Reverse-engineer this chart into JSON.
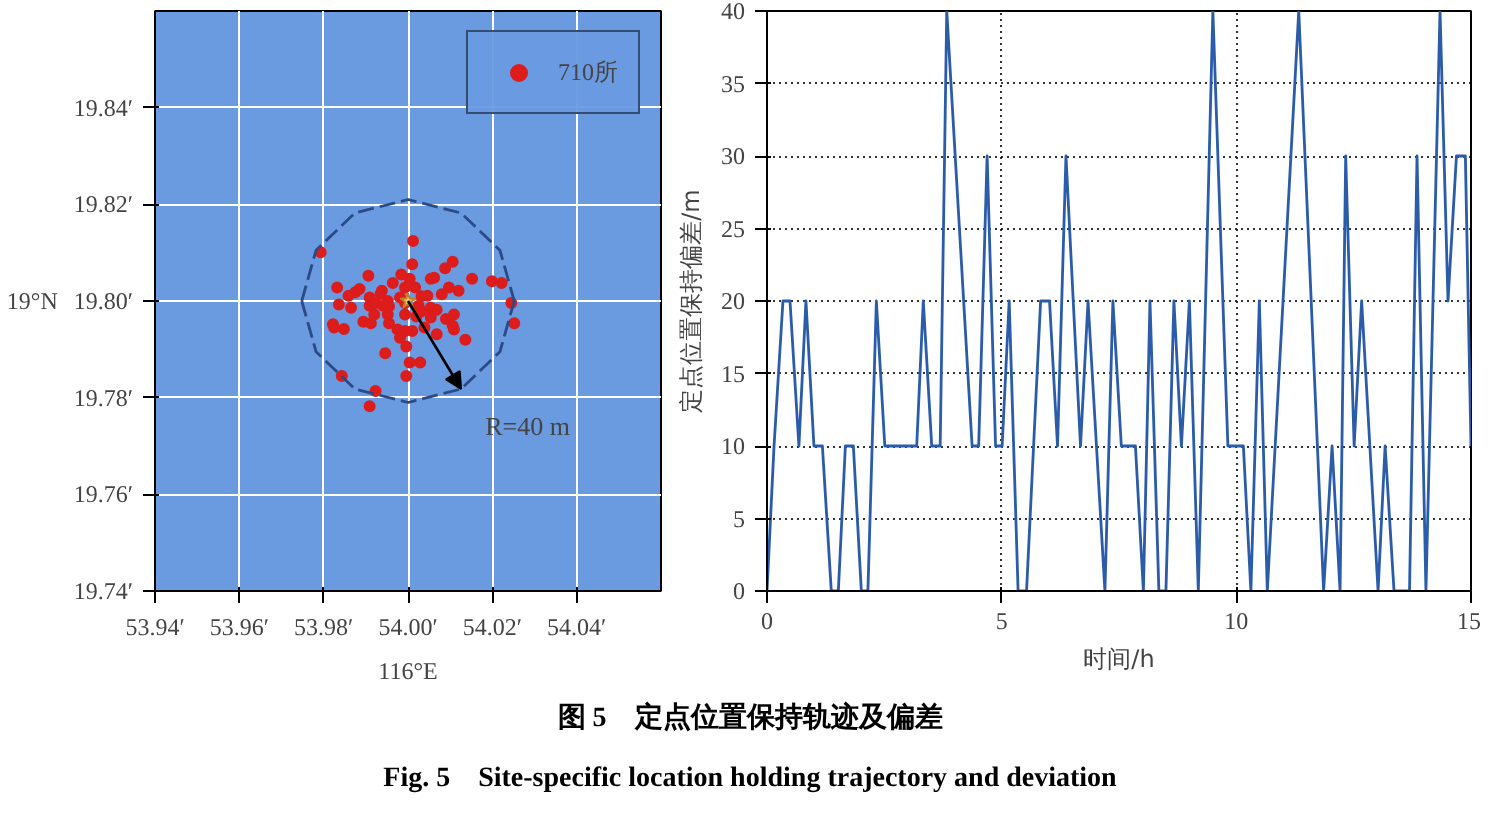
{
  "chart_data": [
    {
      "type": "scatter",
      "xlim": [
        53.94,
        54.06
      ],
      "ylim": [
        19.74,
        19.86
      ],
      "xticks": [
        {
          "value": 53.94,
          "label": "53.94′"
        },
        {
          "value": 53.96,
          "label": "53.96′"
        },
        {
          "value": 53.98,
          "label": "53.98′"
        },
        {
          "value": 54.0,
          "label": "54.00′"
        },
        {
          "value": 54.02,
          "label": "54.02′"
        },
        {
          "value": 54.04,
          "label": "54.04′"
        }
      ],
      "yticks": [
        {
          "value": 19.74,
          "label": "19.74′"
        },
        {
          "value": 19.76,
          "label": "19.76′"
        },
        {
          "value": 19.78,
          "label": "19.78′"
        },
        {
          "value": 19.8,
          "label": "19.80′"
        },
        {
          "value": 19.82,
          "label": "19.82′"
        },
        {
          "value": 19.84,
          "label": "19.84′"
        }
      ],
      "xlabel": "116°E",
      "ylabel": "19°N",
      "grid": true,
      "legend": "top right",
      "series": [
        {
          "name": "710所",
          "color": "#dd1c1c",
          "marker": "circle",
          "x": [
            53.9793,
            54.0012,
            54.001,
            54.0106,
            54.0088,
            53.9906,
            53.9964,
            54.0004,
            54.0054,
            54.0062,
            54.0152,
            54.0199,
            54.0222,
            53.9832,
            53.9885,
            53.9875,
            53.9859,
            53.9938,
            53.9993,
            54.0017,
            54.0097,
            54.012,
            53.9909,
            53.9952,
            53.9981,
            54.0032,
            54.0046,
            54.008,
            53.9836,
            53.9865,
            53.9909,
            53.9923,
            53.9941,
            53.9955,
            53.9993,
            54.0025,
            54.0054,
            54.0068,
            54.0245,
            53.9822,
            53.9825,
            53.9848,
            53.9894,
            53.992,
            53.9912,
            53.9955,
            53.9993,
            54.002,
            54.0032,
            54.0054,
            54.009,
            54.0109,
            54.0106,
            54.0109,
            53.9975,
            53.9993,
            54.001,
            54.0039,
            54.0068,
            54.0136,
            54.0252,
            53.9981,
            53.9996,
            53.9946,
            54.0004,
            54.0029,
            53.9996,
            53.9843,
            53.9923,
            53.9909,
            53.9952,
            53.9935,
            53.9984
          ],
          "values": [
            19.8101,
            19.8124,
            19.8076,
            19.8081,
            19.8068,
            19.8052,
            19.8037,
            19.8046,
            19.8046,
            19.8048,
            19.8046,
            19.8041,
            19.8037,
            19.8028,
            19.8025,
            19.8018,
            19.8011,
            19.8021,
            19.8028,
            19.8028,
            19.8028,
            19.8021,
            19.8007,
            19.8,
            19.8007,
            19.801,
            19.8011,
            19.8014,
            19.7993,
            19.7986,
            19.799,
            19.7996,
            19.799,
            19.7989,
            19.7996,
            19.799,
            19.7986,
            19.7982,
            19.7996,
            19.7952,
            19.7945,
            19.7942,
            19.7957,
            19.7972,
            19.7954,
            19.7954,
            19.7972,
            19.7968,
            19.7979,
            19.7966,
            19.7963,
            19.7972,
            19.7949,
            19.7941,
            19.7941,
            19.7938,
            19.7938,
            19.7945,
            19.7931,
            19.792,
            19.7954,
            19.7924,
            19.7906,
            19.7892,
            19.7873,
            19.7873,
            19.7845,
            19.7845,
            19.7814,
            19.7782,
            19.7972,
            19.8015,
            19.8055
          ]
        },
        {
          "color": "#f5c86a",
          "marker": "star",
          "x": [
            54.0
          ],
          "values": [
            19.8
          ]
        },
        {
          "type": "line",
          "color": "#2b4a86",
          "line_style": "dashed",
          "x": [
            53.9748,
            53.9782,
            53.9874,
            54.0,
            54.0126,
            54.0218,
            54.0252
          ],
          "values": [
            19.8,
            19.8105,
            19.8182,
            19.821,
            19.8182,
            19.8105,
            19.8
          ]
        },
        {
          "type": "line",
          "color": "#2b4a86",
          "line_style": "dashed",
          "x": [
            53.9748,
            53.9782,
            53.9874,
            54.0,
            54.0126,
            54.0218,
            54.0252
          ],
          "values": [
            19.8,
            19.7895,
            19.7818,
            19.779,
            19.7818,
            19.7895,
            19.8
          ]
        }
      ],
      "annotations": [
        "R=40 m"
      ]
    },
    {
      "type": "line",
      "xlim": [
        0,
        15
      ],
      "ylim": [
        0,
        40
      ],
      "xticks": [
        0,
        5,
        10,
        15
      ],
      "yticks": [
        0,
        5,
        10,
        15,
        20,
        25,
        30,
        35,
        40
      ],
      "xlabel": "时间/h",
      "ylabel": "定点位置保持偏差/m",
      "grid": true,
      "line_style": "solid",
      "series": [
        {
          "color": "#2a5caa",
          "x": [
            0,
            0.15,
            0.34,
            0.49,
            0.68,
            0.83,
            1.0,
            1.18,
            1.37,
            1.52,
            1.67,
            1.84,
            2.01,
            2.15,
            2.33,
            2.51,
            3.19,
            3.33,
            3.51,
            3.69,
            3.83,
            4.37,
            4.51,
            4.69,
            4.87,
            5.01,
            5.16,
            5.35,
            5.53,
            5.83,
            6.02,
            6.19,
            6.37,
            6.68,
            6.84,
            7.2,
            7.37,
            7.55,
            7.85,
            8.02,
            8.16,
            8.35,
            8.5,
            8.67,
            8.83,
            9.0,
            9.19,
            9.5,
            9.82,
            10.15,
            10.31,
            10.49,
            10.66,
            11.33,
            11.86,
            12.04,
            12.21,
            12.33,
            12.51,
            12.67,
            13.02,
            13.17,
            13.36,
            13.69,
            13.85,
            14.04,
            14.34,
            14.51,
            14.69,
            14.88,
            15.0
          ],
          "values": [
            0,
            10,
            20,
            20,
            10,
            20,
            10,
            10,
            0,
            0,
            10,
            10,
            0,
            0,
            20,
            10,
            10,
            20,
            10,
            10,
            40,
            10,
            10,
            30,
            10,
            10,
            20,
            0,
            0,
            20,
            20,
            10,
            30,
            10,
            20,
            0,
            20,
            10,
            10,
            0,
            20,
            0,
            0,
            20,
            10,
            20,
            0,
            40,
            10,
            10,
            0,
            20,
            0,
            40,
            0,
            10,
            0,
            30,
            10,
            20,
            0,
            10,
            0,
            0,
            30,
            0,
            40,
            20,
            30,
            30,
            10
          ]
        }
      ],
      "annotations": [
        "图 5　定点位置保持轨迹及偏差",
        "Fig. 5　Site-specific location holding trajectory and deviation"
      ]
    }
  ]
}
